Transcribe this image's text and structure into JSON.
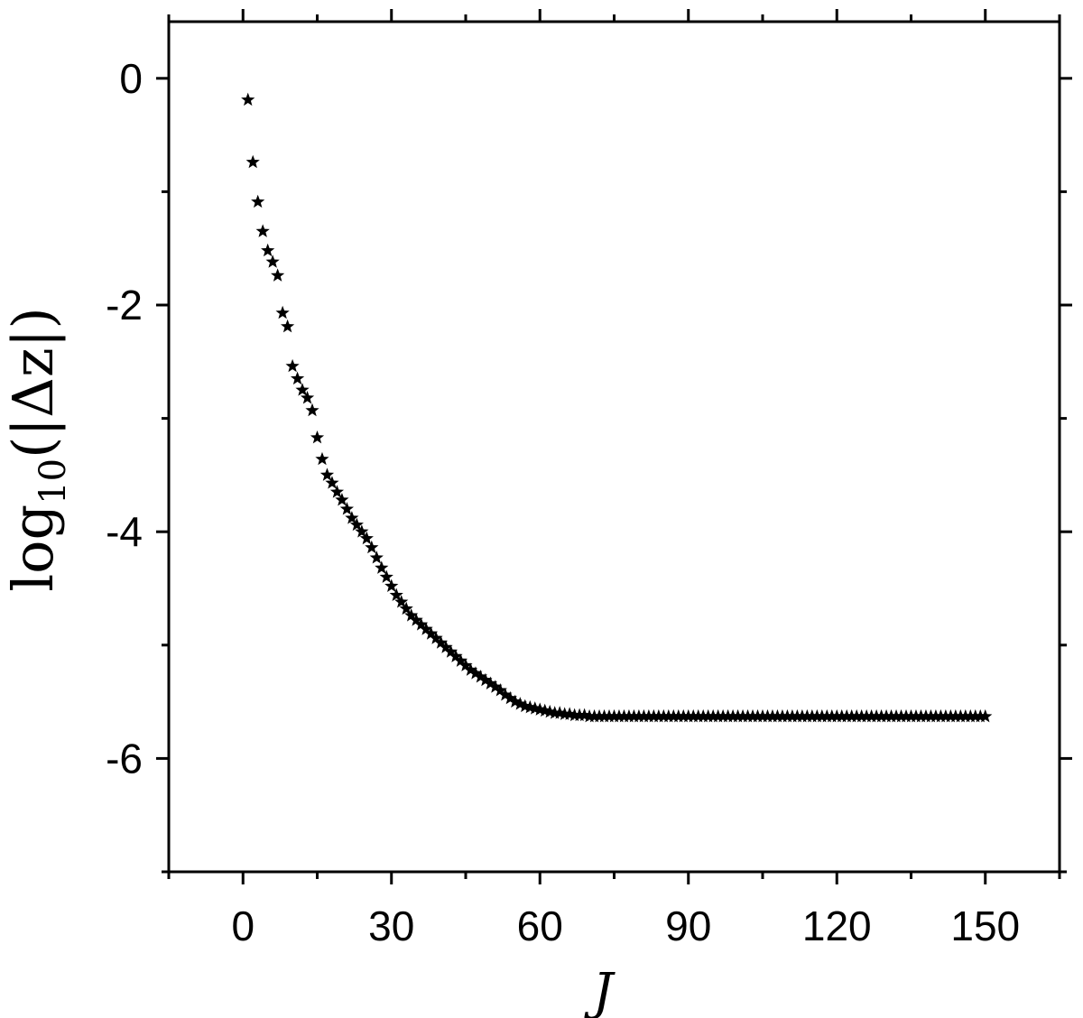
{
  "chart_data": {
    "type": "scatter",
    "xlabel": "J",
    "ylabel": {
      "func": "log",
      "sub": "10",
      "arg": "(|Δz|)"
    },
    "xlim": [
      -15,
      165
    ],
    "ylim": [
      -7,
      0.5
    ],
    "xticks": [
      0,
      30,
      60,
      90,
      120,
      150
    ],
    "xtick_labels": [
      "0",
      "30",
      "60",
      "90",
      "120",
      "150"
    ],
    "yticks": [
      0,
      -2,
      -4,
      -6
    ],
    "ytick_labels": [
      "0",
      "-2",
      "-4",
      "-6"
    ],
    "marker": "star",
    "marker_color": "#000000",
    "grid": false,
    "series": [
      {
        "x": [
          1,
          2,
          3,
          4,
          5,
          6,
          7,
          8,
          9,
          10,
          11,
          12,
          13,
          14,
          15,
          16,
          17,
          18,
          19,
          20,
          21,
          22,
          23,
          24,
          25,
          26,
          27,
          28,
          29,
          30,
          31,
          32,
          33,
          34,
          35,
          36,
          37,
          38,
          39,
          40,
          41,
          42,
          43,
          44,
          45,
          46,
          47,
          48,
          49,
          50,
          51,
          52,
          53,
          54,
          55,
          56,
          57,
          58,
          59,
          60,
          61,
          62,
          63,
          64,
          65,
          66,
          67,
          68,
          69,
          70,
          71,
          72,
          73,
          74,
          75,
          76,
          77,
          78,
          79,
          80,
          81,
          82,
          83,
          84,
          85,
          86,
          87,
          88,
          89,
          90,
          91,
          92,
          93,
          94,
          95,
          96,
          97,
          98,
          99,
          100,
          101,
          102,
          103,
          104,
          105,
          106,
          107,
          108,
          109,
          110,
          111,
          112,
          113,
          114,
          115,
          116,
          117,
          118,
          119,
          120,
          121,
          122,
          123,
          124,
          125,
          126,
          127,
          128,
          129,
          130,
          131,
          132,
          133,
          134,
          135,
          136,
          137,
          138,
          139,
          140,
          141,
          142,
          143,
          144,
          145,
          146,
          147,
          148,
          149,
          150
        ],
        "y": [
          -0.19,
          -0.74,
          -1.09,
          -1.35,
          -1.52,
          -1.62,
          -1.74,
          -2.07,
          -2.19,
          -2.54,
          -2.65,
          -2.75,
          -2.82,
          -2.93,
          -3.17,
          -3.36,
          -3.5,
          -3.57,
          -3.65,
          -3.72,
          -3.8,
          -3.88,
          -3.94,
          -4.0,
          -4.06,
          -4.14,
          -4.23,
          -4.32,
          -4.4,
          -4.48,
          -4.56,
          -4.62,
          -4.68,
          -4.74,
          -4.78,
          -4.82,
          -4.86,
          -4.9,
          -4.94,
          -4.98,
          -5.02,
          -5.06,
          -5.1,
          -5.14,
          -5.18,
          -5.22,
          -5.25,
          -5.28,
          -5.31,
          -5.34,
          -5.37,
          -5.4,
          -5.44,
          -5.47,
          -5.5,
          -5.52,
          -5.54,
          -5.55,
          -5.56,
          -5.57,
          -5.58,
          -5.59,
          -5.6,
          -5.6,
          -5.61,
          -5.61,
          -5.62,
          -5.62,
          -5.62,
          -5.63,
          -5.63,
          -5.63,
          -5.63,
          -5.63,
          -5.63,
          -5.63,
          -5.63,
          -5.63,
          -5.63,
          -5.63,
          -5.63,
          -5.63,
          -5.63,
          -5.63,
          -5.63,
          -5.63,
          -5.63,
          -5.63,
          -5.63,
          -5.63,
          -5.63,
          -5.63,
          -5.63,
          -5.63,
          -5.63,
          -5.63,
          -5.63,
          -5.63,
          -5.63,
          -5.63,
          -5.63,
          -5.63,
          -5.63,
          -5.63,
          -5.63,
          -5.63,
          -5.63,
          -5.63,
          -5.63,
          -5.63,
          -5.63,
          -5.63,
          -5.63,
          -5.63,
          -5.63,
          -5.63,
          -5.63,
          -5.63,
          -5.63,
          -5.63,
          -5.63,
          -5.63,
          -5.63,
          -5.63,
          -5.63,
          -5.63,
          -5.63,
          -5.63,
          -5.63,
          -5.63,
          -5.63,
          -5.63,
          -5.63,
          -5.63,
          -5.63,
          -5.63,
          -5.63,
          -5.63,
          -5.63,
          -5.63,
          -5.63,
          -5.63,
          -5.63,
          -5.63,
          -5.63,
          -5.63,
          -5.63,
          -5.63,
          -5.63,
          -5.63
        ]
      }
    ]
  }
}
